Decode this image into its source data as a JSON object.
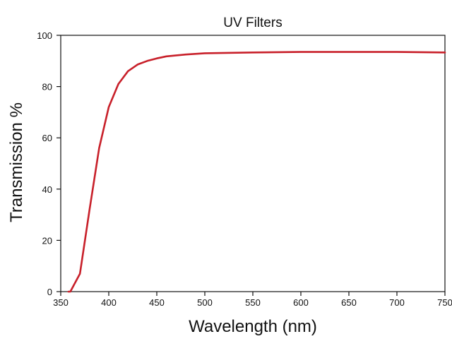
{
  "chart_data": {
    "type": "line",
    "title": "UV Filters",
    "xlabel": "Wavelength (nm)",
    "ylabel": "Transmission %",
    "xlim": [
      350,
      750
    ],
    "ylim": [
      0,
      100
    ],
    "x_ticks": [
      "350",
      "400",
      "450",
      "500",
      "550",
      "600",
      "650",
      "700",
      "750"
    ],
    "y_ticks": [
      "0",
      "20",
      "40",
      "60",
      "80",
      "100"
    ],
    "grid": false,
    "legend": "none",
    "series": [
      {
        "color": "#c8202a",
        "x": [
          358,
          360,
          370,
          380,
          390,
          400,
          410,
          420,
          430,
          440,
          450,
          460,
          480,
          500,
          550,
          600,
          650,
          700,
          750
        ],
        "y": [
          0,
          0,
          7,
          32,
          56,
          72,
          81,
          86,
          88.6,
          90,
          91,
          91.8,
          92.5,
          93,
          93.3,
          93.5,
          93.5,
          93.5,
          93.3
        ]
      }
    ]
  }
}
